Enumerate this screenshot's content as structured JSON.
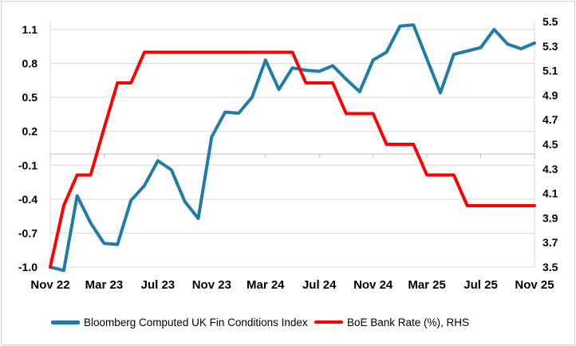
{
  "colors": {
    "fci_line": "#1F7CA8",
    "rate_line": "#FF0000",
    "gridline": "#D9D9D9",
    "category_axis": "#BFBFBF",
    "text": "#000000",
    "frame_border": "#D2D2D2",
    "background": "#FFFFFF"
  },
  "legend": {
    "fci_label": "Bloomberg Computed UK Fin Conditions Index",
    "rate_label": "BoE Bank Rate (%), RHS"
  },
  "chart_data": {
    "type": "line",
    "title": "",
    "xlabel": "",
    "ylabel": "",
    "grid": true,
    "legend_position": "bottom",
    "x_categories": [
      "Nov 22",
      "Dec 22",
      "Jan 23",
      "Feb 23",
      "Mar 23",
      "Apr 23",
      "May 23",
      "Jun 23",
      "Jul 23",
      "Aug 23",
      "Sep 23",
      "Oct 23",
      "Nov 23",
      "Dec 23",
      "Jan 24",
      "Feb 24",
      "Mar 24",
      "Apr 24",
      "May 24",
      "Jun 24",
      "Jul 24",
      "Aug 24",
      "Sep 24",
      "Oct 24",
      "Nov 24",
      "Dec 24",
      "Jan 25",
      "Feb 25",
      "Mar 25",
      "Apr 25",
      "May 25",
      "Jun 25",
      "Jul 25",
      "Aug 25",
      "Sep 25",
      "Oct 25",
      "Nov 25"
    ],
    "x_tick_indices": [
      0,
      4,
      8,
      12,
      16,
      20,
      24,
      28,
      32,
      36
    ],
    "x_tick_labels": [
      "Nov 22",
      "Mar 23",
      "Jul 23",
      "Nov 23",
      "Mar 24",
      "Jul 24",
      "Nov 24",
      "Mar 25",
      "Jul 25",
      "Nov 25"
    ],
    "left_axis": {
      "min": -1.0,
      "top_tick": 1.1,
      "tick_step": 0.3,
      "ticks_values": [
        1.1,
        0.8,
        0.5,
        0.2,
        -0.1,
        -0.4,
        -0.7,
        -1.0
      ],
      "ticks_labels": [
        "1.1",
        "0.8",
        "0.5",
        "0.2",
        "-0.1",
        "-0.4",
        "-0.7",
        "-1.0"
      ]
    },
    "right_axis": {
      "min": 3.5,
      "max": 5.5,
      "tick_step": 0.2,
      "ticks_values": [
        5.5,
        5.3,
        5.1,
        4.9,
        4.7,
        4.5,
        4.3,
        4.1,
        3.9,
        3.7,
        3.5
      ],
      "ticks_labels": [
        "5.5",
        "5.3",
        "5.1",
        "4.9",
        "4.7",
        "4.5",
        "4.3",
        "4.1",
        "3.9",
        "3.7",
        "3.5"
      ]
    },
    "series": [
      {
        "name": "Bloomberg Computed UK Fin Conditions Index",
        "axis": "left",
        "color": "#1F7CA8",
        "values": [
          -1.0,
          -1.03,
          -0.37,
          -0.61,
          -0.79,
          -0.8,
          -0.41,
          -0.28,
          -0.06,
          -0.14,
          -0.42,
          -0.57,
          0.15,
          0.37,
          0.36,
          0.5,
          0.83,
          0.57,
          0.76,
          0.74,
          0.73,
          0.78,
          0.66,
          0.55,
          0.83,
          0.9,
          1.13,
          1.14,
          0.84,
          0.54,
          0.88,
          0.91,
          0.94,
          1.1,
          0.97,
          0.93,
          0.98
        ]
      },
      {
        "name": "BoE Bank Rate (%), RHS",
        "axis": "right",
        "color": "#FF0000",
        "values": [
          3.5,
          4.0,
          4.25,
          4.25,
          4.63,
          5.0,
          5.0,
          5.25,
          5.25,
          5.25,
          5.25,
          5.25,
          5.25,
          5.25,
          5.25,
          5.25,
          5.25,
          5.25,
          5.25,
          5.0,
          5.0,
          5.0,
          4.75,
          4.75,
          4.75,
          4.5,
          4.5,
          4.5,
          4.25,
          4.25,
          4.25,
          4.0,
          4.0,
          4.0,
          4.0,
          4.0,
          4.0
        ]
      }
    ]
  }
}
